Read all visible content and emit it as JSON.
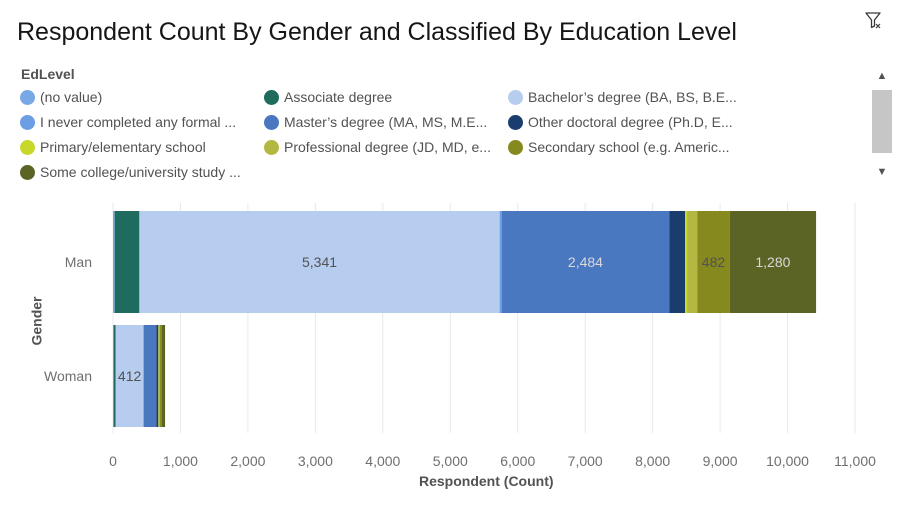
{
  "header": {
    "title": "Respondent Count By Gender and Classified By Education Level"
  },
  "toolbar": {
    "filter_icon": "filter-icon"
  },
  "legend": {
    "title": "EdLevel",
    "items": [
      {
        "label": "(no value)",
        "color": "#78a9e6"
      },
      {
        "label": "Associate degree",
        "color": "#1f6b5e"
      },
      {
        "label": "Bachelor’s degree (BA, BS, B.E...",
        "color": "#b7cdef"
      },
      {
        "label": "I never completed any formal ...",
        "color": "#6c9ee4"
      },
      {
        "label": "Master’s degree (MA, MS, M.E...",
        "color": "#4a78c0"
      },
      {
        "label": "Other doctoral degree (Ph.D, E...",
        "color": "#1b3d6e"
      },
      {
        "label": "Primary/elementary school",
        "color": "#c8d82a"
      },
      {
        "label": "Professional degree (JD, MD, e...",
        "color": "#b4b842"
      },
      {
        "label": "Secondary school (e.g. Americ...",
        "color": "#868a1e"
      },
      {
        "label": "Some college/university study ...",
        "color": "#5b6424"
      }
    ]
  },
  "scrollbar": {
    "up_icon": "chevron-up-icon",
    "down_icon": "chevron-down-icon"
  },
  "chart_data": {
    "type": "bar",
    "orientation": "horizontal",
    "stacked": true,
    "categories": [
      "Man",
      "Woman"
    ],
    "xlabel": "Respondent (Count)",
    "ylabel": "Gender",
    "xlim": [
      0,
      11000
    ],
    "xticks": [
      "0",
      "1,000",
      "2,000",
      "3,000",
      "4,000",
      "5,000",
      "6,000",
      "7,000",
      "8,000",
      "9,000",
      "10,000",
      "11,000"
    ],
    "grid": true,
    "legend_position": "top",
    "series": [
      {
        "name": "(no value)",
        "color": "#78a9e6",
        "values": [
          25,
          10
        ],
        "labels": [
          "",
          ""
        ]
      },
      {
        "name": "Associate degree",
        "color": "#1f6b5e",
        "values": [
          366,
          30
        ],
        "labels": [
          "",
          ""
        ]
      },
      {
        "name": "Bachelor’s degree (BA, BS, B.E...",
        "color": "#b7cdef",
        "values": [
          5341,
          412
        ],
        "labels": [
          "5,341",
          "412"
        ]
      },
      {
        "name": "I never completed any formal ...",
        "color": "#6c9ee4",
        "values": [
          30,
          5
        ],
        "labels": [
          "",
          ""
        ]
      },
      {
        "name": "Master’s degree (MA, MS, M.E...",
        "color": "#4a78c0",
        "values": [
          2484,
          185
        ],
        "labels": [
          "2,484",
          ""
        ]
      },
      {
        "name": "Other doctoral degree (Ph.D, E...",
        "color": "#1b3d6e",
        "values": [
          235,
          30
        ],
        "labels": [
          "",
          ""
        ]
      },
      {
        "name": "Primary/elementary school",
        "color": "#c8d82a",
        "values": [
          30,
          5
        ],
        "labels": [
          "",
          ""
        ]
      },
      {
        "name": "Professional degree (JD, MD, e...",
        "color": "#b4b842",
        "values": [
          150,
          20
        ],
        "labels": [
          "",
          ""
        ]
      },
      {
        "name": "Secondary school (e.g. Americ...",
        "color": "#868a1e",
        "values": [
          482,
          25
        ],
        "labels": [
          "482",
          ""
        ]
      },
      {
        "name": "Some college/university study ...",
        "color": "#5b6424",
        "values": [
          1280,
          50
        ],
        "labels": [
          "1,280",
          ""
        ]
      }
    ]
  }
}
